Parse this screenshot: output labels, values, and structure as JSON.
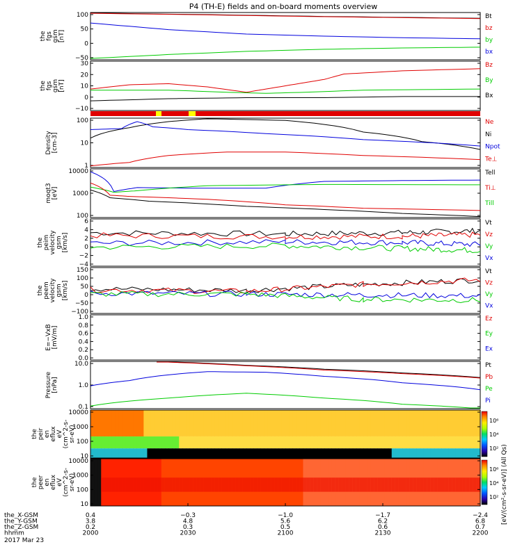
{
  "title": "P4 (TH-E) fields and on-board moments overview",
  "colors": {
    "black": "#000000",
    "red": "#e00000",
    "green": "#00cc00",
    "blue": "#0000dd",
    "yellow": "#ffff00",
    "axis": "#000000"
  },
  "panels": [
    {
      "ylabel": [
        "the",
        "fgs",
        "gsm",
        "[nT]"
      ],
      "yticks": [
        "100",
        "50",
        "0",
        "−50"
      ],
      "ylim": [
        -70,
        110
      ],
      "legend": [
        {
          "text": "Bt",
          "color": "black"
        },
        {
          "text": "bz",
          "color": "red"
        },
        {
          "text": "by",
          "color": "green"
        },
        {
          "text": "bx",
          "color": "blue"
        }
      ],
      "series": [
        {
          "color": "black",
          "points": [
            [
              0,
              108
            ],
            [
              30,
              102
            ],
            [
              60,
              95
            ],
            [
              100,
              88
            ]
          ]
        },
        {
          "color": "red",
          "points": [
            [
              0,
              107
            ],
            [
              30,
              101
            ],
            [
              60,
              94
            ],
            [
              100,
              87
            ]
          ]
        },
        {
          "color": "blue",
          "points": [
            [
              0,
              70
            ],
            [
              20,
              45
            ],
            [
              40,
              28
            ],
            [
              60,
              20
            ],
            [
              80,
              14
            ],
            [
              100,
              10
            ]
          ]
        },
        {
          "color": "green",
          "points": [
            [
              0,
              -65
            ],
            [
              20,
              -50
            ],
            [
              40,
              -38
            ],
            [
              60,
              -30
            ],
            [
              80,
              -25
            ],
            [
              100,
              -22
            ]
          ]
        }
      ]
    },
    {
      "ylabel": [
        "the",
        "fgs",
        "gsm",
        "[nT]"
      ],
      "yticks": [
        "30",
        "20",
        "10",
        "0",
        "−10"
      ],
      "ylim": [
        -14,
        32
      ],
      "legend": [
        {
          "text": "Bz",
          "color": "red"
        },
        {
          "text": "By",
          "color": "green"
        },
        {
          "text": "Bx",
          "color": "black"
        }
      ],
      "series": [
        {
          "color": "red",
          "points": [
            [
              0,
              6
            ],
            [
              10,
              10
            ],
            [
              20,
              11
            ],
            [
              30,
              8
            ],
            [
              40,
              3
            ],
            [
              45,
              6
            ],
            [
              55,
              12
            ],
            [
              60,
              15
            ],
            [
              65,
              20
            ],
            [
              80,
              23
            ],
            [
              100,
              25
            ]
          ]
        },
        {
          "color": "green",
          "points": [
            [
              0,
              5
            ],
            [
              20,
              5
            ],
            [
              35,
              3
            ],
            [
              45,
              2
            ],
            [
              55,
              3
            ],
            [
              70,
              5
            ],
            [
              100,
              6
            ]
          ]
        },
        {
          "color": "black",
          "points": [
            [
              0,
              -5
            ],
            [
              20,
              -3
            ],
            [
              40,
              -2
            ],
            [
              60,
              -2
            ],
            [
              80,
              -1
            ],
            [
              100,
              -1
            ]
          ]
        }
      ]
    },
    {
      "ylabel": [
        "Density",
        "[cm-3]"
      ],
      "yticks": [
        "100",
        "10",
        "1"
      ],
      "ylim": [
        1,
        300
      ],
      "log": true,
      "legend": [
        {
          "text": "Ne",
          "color": "red"
        },
        {
          "text": "Ni",
          "color": "black"
        },
        {
          "text": "Npot",
          "color": "blue"
        },
        {
          "text": "Te⊥",
          "color": "red"
        }
      ],
      "series": [
        {
          "color": "black",
          "points": [
            [
              0,
              30
            ],
            [
              10,
              100
            ],
            [
              20,
              200
            ],
            [
              30,
              280
            ],
            [
              50,
              230
            ],
            [
              70,
              60
            ],
            [
              85,
              20
            ],
            [
              100,
              8
            ]
          ]
        },
        {
          "color": "blue",
          "points": [
            [
              0,
              80
            ],
            [
              8,
              90
            ],
            [
              12,
              200
            ],
            [
              16,
              110
            ],
            [
              25,
              80
            ],
            [
              45,
              50
            ],
            [
              70,
              25
            ],
            [
              100,
              12
            ]
          ]
        },
        {
          "color": "red",
          "points": [
            [
              0,
              1.2
            ],
            [
              10,
              1.8
            ],
            [
              20,
              4
            ],
            [
              35,
              6
            ],
            [
              50,
              6
            ],
            [
              70,
              4
            ],
            [
              100,
              2.5
            ]
          ]
        }
      ]
    },
    {
      "ylabel": [
        "moqt3",
        "[eV]"
      ],
      "yticks": [
        "10000",
        "1000",
        "100"
      ],
      "ylim": [
        100,
        12000
      ],
      "log": true,
      "legend": [
        {
          "text": "Tell",
          "color": "black"
        },
        {
          "text": "Ti⊥",
          "color": "red"
        },
        {
          "text": "Till",
          "color": "green"
        }
      ],
      "series": [
        {
          "color": "blue",
          "points": [
            [
              0,
              9000
            ],
            [
              6,
              1300
            ],
            [
              12,
              1900
            ],
            [
              25,
              1800
            ],
            [
              45,
              1800
            ],
            [
              60,
              3500
            ],
            [
              80,
              3800
            ],
            [
              100,
              4000
            ]
          ]
        },
        {
          "color": "green",
          "points": [
            [
              0,
              2000
            ],
            [
              6,
              1200
            ],
            [
              12,
              1400
            ],
            [
              30,
              2300
            ],
            [
              60,
              2600
            ],
            [
              100,
              2500
            ]
          ]
        },
        {
          "color": "red",
          "points": [
            [
              0,
              3000
            ],
            [
              5,
              900
            ],
            [
              10,
              800
            ],
            [
              30,
              600
            ],
            [
              50,
              350
            ],
            [
              70,
              250
            ],
            [
              100,
              200
            ]
          ]
        },
        {
          "color": "black",
          "points": [
            [
              0,
              1500
            ],
            [
              5,
              700
            ],
            [
              15,
              500
            ],
            [
              40,
              300
            ],
            [
              60,
              220
            ],
            [
              80,
              150
            ],
            [
              100,
              110
            ]
          ]
        }
      ]
    },
    {
      "ylabel": [
        "the",
        "peim",
        "velocity",
        "gsm",
        "[km/s]"
      ],
      "yticks": [
        "6",
        "4",
        "2",
        "0",
        "−2",
        "−4"
      ],
      "ylim": [
        -6,
        6
      ],
      "noisy": true,
      "legend": [
        {
          "text": "Vt",
          "color": "black"
        },
        {
          "text": "Vz",
          "color": "red"
        },
        {
          "text": "Vy",
          "color": "green"
        },
        {
          "text": "Vx",
          "color": "blue"
        }
      ],
      "series": [
        {
          "color": "black",
          "points": [
            [
              0,
              2.5
            ],
            [
              50,
              2.2
            ],
            [
              80,
              2.5
            ],
            [
              100,
              3
            ]
          ]
        },
        {
          "color": "red",
          "points": [
            [
              0,
              1.8
            ],
            [
              50,
              1.5
            ],
            [
              80,
              1.6
            ],
            [
              100,
              2
            ]
          ]
        },
        {
          "color": "blue",
          "points": [
            [
              0,
              -0.2
            ],
            [
              50,
              0.2
            ],
            [
              80,
              0
            ],
            [
              100,
              -0.5
            ]
          ]
        },
        {
          "color": "green",
          "points": [
            [
              0,
              -1.2
            ],
            [
              50,
              -0.8
            ],
            [
              80,
              -1.5
            ],
            [
              100,
              -2
            ]
          ]
        }
      ]
    },
    {
      "ylabel": [
        "the",
        "peem",
        "velocity",
        "gsm",
        "[km/s]"
      ],
      "yticks": [
        "150",
        "100",
        "50",
        "0",
        "−50",
        "−100"
      ],
      "ylim": [
        -110,
        150
      ],
      "noisy": true,
      "legend": [
        {
          "text": "Vt",
          "color": "black"
        },
        {
          "text": "Vz",
          "color": "red"
        },
        {
          "text": "Vy",
          "color": "green"
        },
        {
          "text": "Vx",
          "color": "blue"
        }
      ],
      "series": [
        {
          "color": "black",
          "points": [
            [
              0,
              30
            ],
            [
              40,
              20
            ],
            [
              70,
              55
            ],
            [
              100,
              80
            ]
          ]
        },
        {
          "color": "red",
          "points": [
            [
              0,
              25
            ],
            [
              40,
              15
            ],
            [
              70,
              55
            ],
            [
              100,
              80
            ]
          ]
        },
        {
          "color": "blue",
          "points": [
            [
              0,
              5
            ],
            [
              40,
              0
            ],
            [
              70,
              -5
            ],
            [
              100,
              -10
            ]
          ]
        },
        {
          "color": "green",
          "points": [
            [
              0,
              0
            ],
            [
              40,
              0
            ],
            [
              70,
              -30
            ],
            [
              100,
              -35
            ]
          ]
        }
      ]
    },
    {
      "ylabel": [
        "E=−VxB",
        "[mV/m]"
      ],
      "yticks": [
        "1.0",
        "0.8",
        "0.6",
        "0.4",
        "0.2",
        "0.0"
      ],
      "ylim": [
        0,
        1
      ],
      "legend": [
        {
          "text": "Ez",
          "color": "red"
        },
        {
          "text": "Ey",
          "color": "green"
        },
        {
          "text": "Ex",
          "color": "blue"
        }
      ],
      "series": []
    },
    {
      "ylabel": [
        "Pressure",
        "[nPa]"
      ],
      "yticks": [
        "10.0",
        "1.0",
        "0.1"
      ],
      "ylim": [
        0.05,
        25
      ],
      "log": true,
      "legend": [
        {
          "text": "Pt",
          "color": "black"
        },
        {
          "text": "Pb",
          "color": "red"
        },
        {
          "text": "Pe",
          "color": "green"
        },
        {
          "text": "Pi",
          "color": "blue"
        }
      ],
      "series": [
        {
          "color": "black",
          "points": [
            [
              17,
              25
            ],
            [
              40,
              15
            ],
            [
              60,
              9
            ],
            [
              80,
              5.5
            ],
            [
              100,
              3
            ]
          ]
        },
        {
          "color": "red",
          "points": [
            [
              17,
              24
            ],
            [
              40,
              14
            ],
            [
              60,
              8
            ],
            [
              80,
              5
            ],
            [
              100,
              2.8
            ]
          ]
        },
        {
          "color": "blue",
          "points": [
            [
              0,
              1.0
            ],
            [
              10,
              2.0
            ],
            [
              30,
              6.5
            ],
            [
              45,
              6
            ],
            [
              60,
              3.5
            ],
            [
              80,
              1.5
            ],
            [
              100,
              0.6
            ]
          ]
        },
        {
          "color": "green",
          "points": [
            [
              0,
              0.07
            ],
            [
              20,
              0.2
            ],
            [
              40,
              0.38
            ],
            [
              60,
              0.2
            ],
            [
              80,
              0.09
            ],
            [
              100,
              0.05
            ]
          ]
        }
      ]
    },
    {
      "spectro": "ion",
      "ylabel": [
        "the",
        "peir",
        "en",
        "eflux",
        "eV",
        "(cm^2-s-",
        "sr-eV)"
      ],
      "yticks": [
        "10000",
        "1000",
        "100",
        "10"
      ],
      "cbar_ticks": [
        "10⁶",
        "10⁴",
        "10²"
      ]
    },
    {
      "spectro": "electron",
      "ylabel": [
        "the",
        "peer",
        "en",
        "eflux",
        "eV",
        "(cm^2-s-",
        "sr-eV)"
      ],
      "yticks": [
        "10000",
        "1000",
        "100",
        "10"
      ],
      "cbar_ticks": [
        "10⁶",
        "10⁴",
        "10²"
      ]
    }
  ],
  "colorbar_label": "[eV/(cm²-s-sr-eV)] (All Qs)",
  "xaxis": {
    "tick_labels": [
      "2000",
      "2030",
      "2100",
      "2130",
      "2200"
    ],
    "rows": [
      {
        "label": "the_X-GSM",
        "values": [
          "0.4",
          "−0.3",
          "−1.0",
          "−1.7",
          "−2.4"
        ]
      },
      {
        "label": "the_Y-GSM",
        "values": [
          "3.8",
          "4.8",
          "5.6",
          "6.2",
          "6.8"
        ]
      },
      {
        "label": "the_Z-GSM",
        "values": [
          "0.2",
          "0.3",
          "0.5",
          "0.6",
          "0.7"
        ]
      },
      {
        "label": "hhmm",
        "values": [
          "2000",
          "2030",
          "2100",
          "2130",
          "2200"
        ]
      }
    ],
    "date": "2017 Mar 23"
  },
  "chart_data": {
    "type": "line",
    "title": "P4 (TH-E) fields and on-board moments overview",
    "x": [
      "2000",
      "2030",
      "2100",
      "2130",
      "2200"
    ],
    "series": [
      {
        "name": "Bt",
        "values": [
          108,
          102,
          95,
          91,
          88
        ]
      },
      {
        "name": "bx",
        "values": [
          70,
          35,
          20,
          14,
          10
        ]
      },
      {
        "name": "by",
        "values": [
          -65,
          -45,
          -30,
          -25,
          -22
        ]
      },
      {
        "name": "Bz",
        "values": [
          6,
          8,
          4,
          22,
          25
        ]
      },
      {
        "name": "Ni",
        "values": [
          30,
          250,
          200,
          40,
          8
        ]
      },
      {
        "name": "Ne",
        "values": [
          1.2,
          4,
          6,
          4,
          2.5
        ]
      },
      {
        "name": "Pt",
        "values": [
          null,
          16,
          9,
          5,
          3
        ]
      },
      {
        "name": "Pi",
        "values": [
          1.0,
          6.5,
          4.5,
          1.5,
          0.6
        ]
      },
      {
        "name": "Pe",
        "values": [
          0.07,
          0.3,
          0.25,
          0.09,
          0.05
        ]
      }
    ],
    "xlabel": "hhmm",
    "ylabel": ""
  }
}
